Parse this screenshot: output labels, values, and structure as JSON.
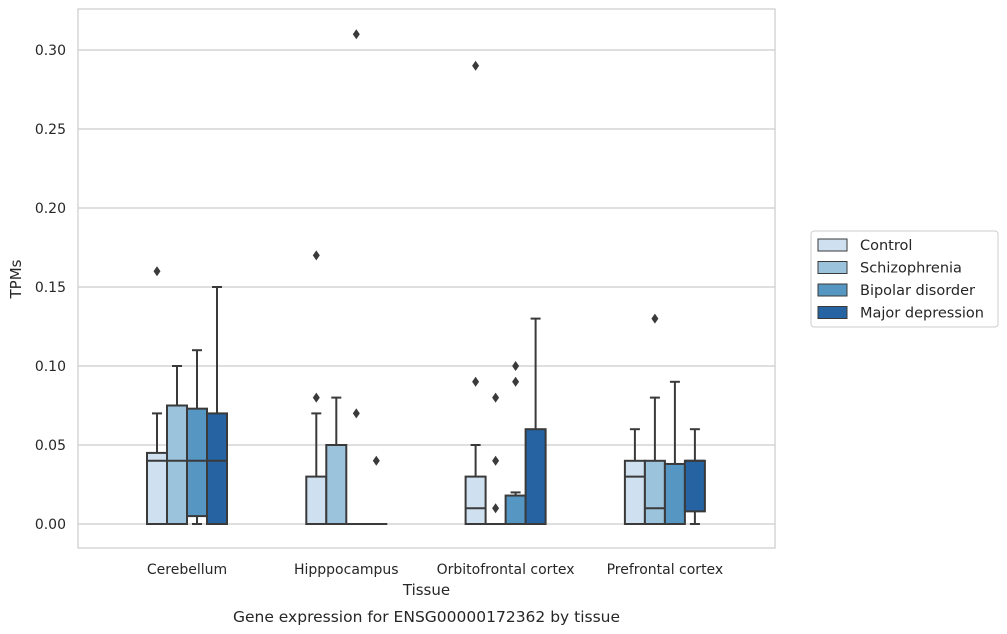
{
  "chart_data": {
    "type": "box",
    "caption": "Gene expression for ENSG00000172362 by tissue",
    "xlabel": "Tissue",
    "ylabel": "TPMs",
    "ylim": [
      -0.015,
      0.325
    ],
    "yticks": [
      0.0,
      0.05,
      0.1,
      0.15,
      0.2,
      0.25,
      0.3
    ],
    "ytick_labels": [
      "0.00",
      "0.05",
      "0.10",
      "0.15",
      "0.20",
      "0.25",
      "0.30"
    ],
    "grid": "horizontal",
    "legend_position": "right",
    "categories": [
      "Cerebellum",
      "Hipppocampus",
      "Orbitofrontal cortex",
      "Prefrontal cortex"
    ],
    "series": [
      {
        "name": "Control",
        "color": "#cfe0f0",
        "boxes": [
          {
            "q1": 0.0,
            "median": 0.04,
            "q3": 0.045,
            "whisker_low": 0.0,
            "whisker_high": 0.07,
            "outliers": [
              0.16
            ]
          },
          {
            "q1": 0.0,
            "median": 0.0,
            "q3": 0.03,
            "whisker_low": 0.0,
            "whisker_high": 0.07,
            "outliers": [
              0.08,
              0.17
            ]
          },
          {
            "q1": 0.0,
            "median": 0.01,
            "q3": 0.03,
            "whisker_low": 0.0,
            "whisker_high": 0.05,
            "outliers": [
              0.09,
              0.29
            ]
          },
          {
            "q1": 0.0,
            "median": 0.03,
            "q3": 0.04,
            "whisker_low": 0.0,
            "whisker_high": 0.06,
            "outliers": []
          }
        ]
      },
      {
        "name": "Schizophrenia",
        "color": "#9cc3dc",
        "boxes": [
          {
            "q1": 0.0,
            "median": 0.04,
            "q3": 0.075,
            "whisker_low": 0.0,
            "whisker_high": 0.1,
            "outliers": []
          },
          {
            "q1": 0.0,
            "median": 0.0,
            "q3": 0.05,
            "whisker_low": 0.0,
            "whisker_high": 0.08,
            "outliers": []
          },
          {
            "q1": 0.0,
            "median": 0.0,
            "q3": 0.0,
            "whisker_low": 0.0,
            "whisker_high": 0.0,
            "outliers": [
              0.01,
              0.04,
              0.08
            ]
          },
          {
            "q1": 0.0,
            "median": 0.01,
            "q3": 0.04,
            "whisker_low": 0.0,
            "whisker_high": 0.08,
            "outliers": [
              0.13
            ]
          }
        ]
      },
      {
        "name": "Bipolar disorder",
        "color": "#5596c3",
        "boxes": [
          {
            "q1": 0.005,
            "median": 0.04,
            "q3": 0.073,
            "whisker_low": 0.0,
            "whisker_high": 0.11,
            "outliers": []
          },
          {
            "q1": 0.0,
            "median": 0.0,
            "q3": 0.0,
            "whisker_low": 0.0,
            "whisker_high": 0.0,
            "outliers": [
              0.07,
              0.31
            ]
          },
          {
            "q1": 0.0,
            "median": 0.0,
            "q3": 0.018,
            "whisker_low": 0.0,
            "whisker_high": 0.02,
            "outliers": [
              0.09,
              0.1
            ]
          },
          {
            "q1": 0.0,
            "median": 0.0,
            "q3": 0.038,
            "whisker_low": 0.0,
            "whisker_high": 0.09,
            "outliers": []
          }
        ]
      },
      {
        "name": "Major depression",
        "color": "#2563a2",
        "boxes": [
          {
            "q1": 0.0,
            "median": 0.04,
            "q3": 0.07,
            "whisker_low": 0.0,
            "whisker_high": 0.15,
            "outliers": []
          },
          {
            "q1": 0.0,
            "median": 0.0,
            "q3": 0.0,
            "whisker_low": 0.0,
            "whisker_high": 0.0,
            "outliers": [
              0.04
            ]
          },
          {
            "q1": 0.0,
            "median": 0.0,
            "q3": 0.06,
            "whisker_low": 0.0,
            "whisker_high": 0.13,
            "outliers": []
          },
          {
            "q1": 0.008,
            "median": 0.04,
            "q3": 0.04,
            "whisker_low": 0.0,
            "whisker_high": 0.06,
            "outliers": []
          }
        ]
      }
    ]
  }
}
